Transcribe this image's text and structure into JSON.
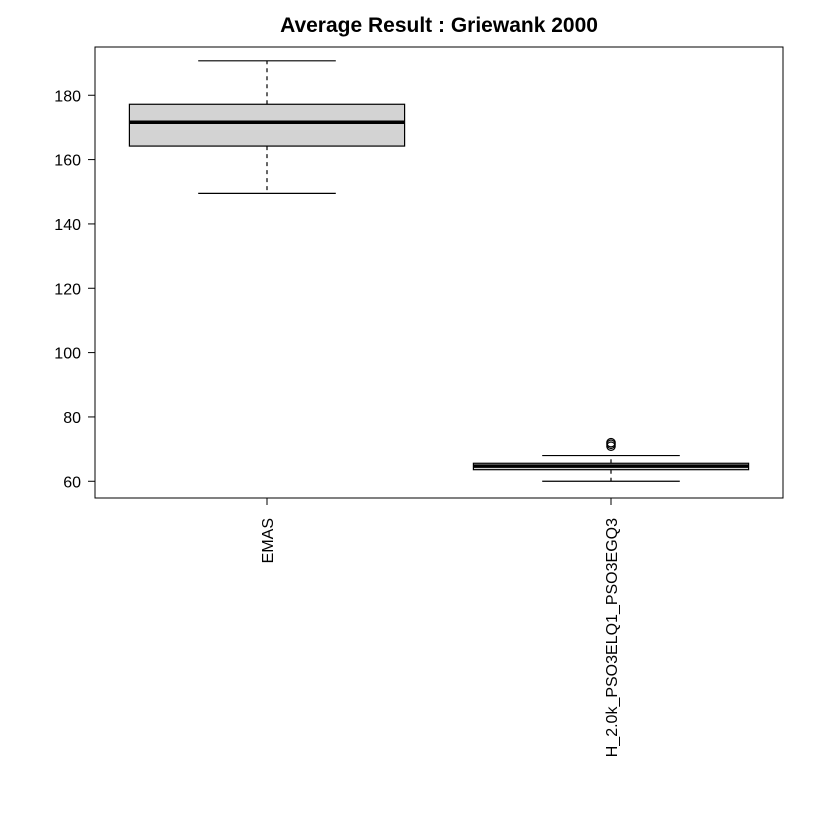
{
  "chart_data": {
    "type": "boxplot",
    "title": "Average Result : Griewank 2000",
    "xlabel": "",
    "ylabel": "",
    "ylim": [
      54.8,
      195.0
    ],
    "yticks": [
      60,
      80,
      100,
      120,
      140,
      160,
      180
    ],
    "grid": false,
    "categories": [
      "EMAS",
      "H_2.0k_PSO3ELQ1_PSO3EGQ3"
    ],
    "boxes": [
      {
        "whisker_low": 149.5,
        "q1": 164.2,
        "median": 171.6,
        "q3": 177.2,
        "whisker_high": 190.7,
        "outliers": []
      },
      {
        "whisker_low": 60.0,
        "q1": 63.6,
        "median": 64.7,
        "q3": 65.6,
        "whisker_high": 68.0,
        "outliers": [
          70.9,
          71.5,
          72.0
        ]
      }
    ],
    "colors": {
      "box_fill": "#d3d3d3",
      "stroke": "#000000"
    }
  }
}
